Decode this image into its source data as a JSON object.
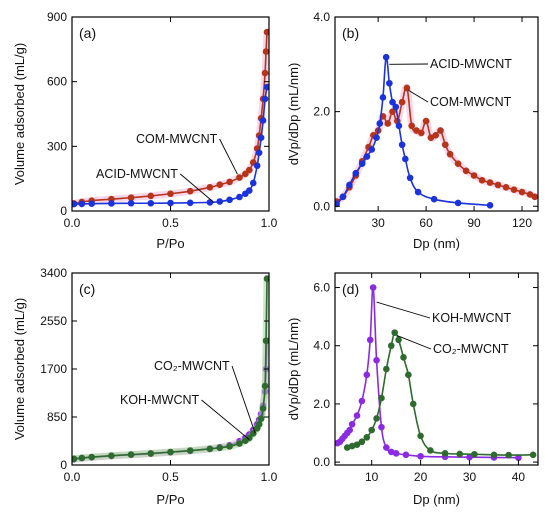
{
  "colors": {
    "com": "#b5341a",
    "acid": "#1a33dd",
    "koh": "#8a2be2",
    "co2": "#2e6b2e",
    "band": "#f3b6d8",
    "band_green": "#9fd59f"
  },
  "chart_data": [
    {
      "id": "a",
      "type": "scatter",
      "panel_label": "(a)",
      "xlabel": "P/Po",
      "ylabel": "Volume adsorbed (mL/g)",
      "xlim": [
        0,
        1.0
      ],
      "ylim": [
        0,
        900
      ],
      "xticks": [
        0.0,
        0.5,
        1.0
      ],
      "xtick_labels": [
        "0.0",
        "0.5",
        "1.0"
      ],
      "yticks": [
        0,
        300,
        600,
        900
      ],
      "ytick_labels": [
        "0",
        "300",
        "600",
        "900"
      ],
      "grid": false,
      "annotations": [
        {
          "text": "COM-MWCNT",
          "series": 0
        },
        {
          "text": "ACID-MWCNT",
          "series": 1
        }
      ],
      "series": [
        {
          "name": "COM-MWCNT",
          "color_key": "com",
          "band": true,
          "x": [
            0.01,
            0.05,
            0.1,
            0.2,
            0.3,
            0.4,
            0.5,
            0.6,
            0.7,
            0.75,
            0.8,
            0.85,
            0.88,
            0.9,
            0.92,
            0.94,
            0.95,
            0.96,
            0.97,
            0.98,
            0.985,
            0.99
          ],
          "y": [
            35,
            42,
            48,
            55,
            62,
            70,
            80,
            92,
            110,
            122,
            135,
            155,
            172,
            190,
            225,
            290,
            350,
            430,
            520,
            640,
            740,
            830
          ]
        },
        {
          "name": "ACID-MWCNT",
          "color_key": "acid",
          "band": false,
          "x": [
            0.01,
            0.05,
            0.1,
            0.2,
            0.3,
            0.4,
            0.5,
            0.6,
            0.7,
            0.75,
            0.8,
            0.85,
            0.88,
            0.9,
            0.92,
            0.94,
            0.95,
            0.96,
            0.97,
            0.98,
            0.99
          ],
          "y": [
            32,
            33,
            34,
            35,
            36,
            36,
            37,
            38,
            40,
            44,
            52,
            65,
            80,
            95,
            130,
            210,
            270,
            340,
            420,
            520,
            575
          ]
        }
      ]
    },
    {
      "id": "b",
      "type": "line",
      "panel_label": "(b)",
      "xlabel": "Dp (nm)",
      "ylabel": "dVp/dDp (mL/nm)",
      "xlim": [
        3,
        130
      ],
      "ylim": [
        -0.1,
        4.0
      ],
      "xticks": [
        30,
        60,
        90,
        120
      ],
      "xtick_labels": [
        "30",
        "60",
        "90",
        "120"
      ],
      "yticks": [
        0,
        2,
        4
      ],
      "ytick_labels": [
        "0.0",
        "2.0",
        "4.0"
      ],
      "grid": false,
      "annotations": [
        {
          "text": "ACID-MWCNT",
          "series": 1
        },
        {
          "text": "COM-MWCNT",
          "series": 0
        }
      ],
      "series": [
        {
          "name": "COM-MWCNT",
          "color_key": "com",
          "band": true,
          "x": [
            4,
            8,
            12,
            16,
            20,
            24,
            27,
            30,
            33,
            36,
            39,
            42,
            45,
            48,
            51,
            54,
            57,
            60,
            63,
            66,
            69,
            72,
            75,
            80,
            85,
            90,
            95,
            100,
            105,
            110,
            115,
            120,
            125,
            128
          ],
          "y": [
            0.1,
            0.2,
            0.4,
            0.65,
            0.95,
            1.25,
            1.5,
            1.6,
            1.9,
            1.75,
            2.0,
            1.8,
            2.2,
            2.5,
            1.7,
            1.6,
            1.55,
            1.8,
            1.45,
            1.5,
            1.6,
            1.3,
            1.1,
            0.9,
            0.75,
            0.65,
            0.55,
            0.5,
            0.45,
            0.4,
            0.35,
            0.3,
            0.25,
            0.2
          ]
        },
        {
          "name": "ACID-MWCNT",
          "color_key": "acid",
          "band": false,
          "x": [
            4,
            8,
            12,
            16,
            20,
            23,
            26,
            29,
            31,
            33,
            35,
            37,
            39,
            41,
            43,
            45,
            47,
            50,
            55,
            65,
            80,
            100
          ],
          "y": [
            0.05,
            0.2,
            0.45,
            0.7,
            0.9,
            1.05,
            1.2,
            1.45,
            1.75,
            2.3,
            3.15,
            2.6,
            2.2,
            2.1,
            1.7,
            1.3,
            1.0,
            0.6,
            0.3,
            0.15,
            0.07,
            0.02
          ]
        }
      ]
    },
    {
      "id": "c",
      "type": "scatter",
      "panel_label": "(c)",
      "xlabel": "P/Po",
      "ylabel": "Volume adsorbed (mL/g)",
      "xlim": [
        0,
        1.0
      ],
      "ylim": [
        0,
        3400
      ],
      "xticks": [
        0.0,
        0.5,
        1.0
      ],
      "xtick_labels": [
        "0.0",
        "0.5",
        "1.0"
      ],
      "yticks": [
        0,
        850,
        1700,
        2550,
        3400
      ],
      "ytick_labels": [
        "0",
        "850",
        "1700",
        "2550",
        "3400"
      ],
      "grid": false,
      "annotations": [
        {
          "text": "CO₂-MWCNT",
          "series": 1
        },
        {
          "text": "KOH-MWCNT",
          "series": 0
        }
      ],
      "series": [
        {
          "name": "KOH-MWCNT",
          "color_key": "koh",
          "band": true,
          "x": [
            0.01,
            0.05,
            0.1,
            0.2,
            0.3,
            0.4,
            0.5,
            0.6,
            0.7,
            0.75,
            0.8,
            0.85,
            0.88,
            0.9,
            0.92,
            0.94,
            0.95,
            0.96,
            0.97,
            0.98,
            0.985,
            0.99
          ],
          "y": [
            100,
            120,
            135,
            160,
            180,
            200,
            225,
            250,
            290,
            315,
            350,
            420,
            480,
            540,
            620,
            720,
            800,
            900,
            1050,
            1300,
            1700,
            2200
          ]
        },
        {
          "name": "CO₂-MWCNT",
          "color_key": "co2",
          "band": true,
          "x": [
            0.01,
            0.05,
            0.1,
            0.2,
            0.3,
            0.4,
            0.5,
            0.6,
            0.7,
            0.75,
            0.8,
            0.85,
            0.88,
            0.9,
            0.92,
            0.94,
            0.95,
            0.96,
            0.97,
            0.98,
            0.985,
            0.99
          ],
          "y": [
            110,
            125,
            140,
            165,
            185,
            205,
            230,
            255,
            285,
            305,
            330,
            380,
            430,
            480,
            560,
            650,
            720,
            820,
            1000,
            1400,
            2200,
            3300
          ]
        }
      ]
    },
    {
      "id": "d",
      "type": "line",
      "panel_label": "(d)",
      "xlabel": "Dp (nm)",
      "ylabel": "dVp/dDp (mL/nm)",
      "xlim": [
        2.5,
        44
      ],
      "ylim": [
        -0.1,
        6.5
      ],
      "xticks": [
        10,
        20,
        30,
        40
      ],
      "xtick_labels": [
        "10",
        "20",
        "30",
        "40"
      ],
      "yticks": [
        0,
        2,
        4,
        6
      ],
      "ytick_labels": [
        "0.0",
        "2.0",
        "4.0",
        "6.0"
      ],
      "grid": false,
      "annotations": [
        {
          "text": "KOH-MWCNT",
          "series": 0
        },
        {
          "text": "CO₂-MWCNT",
          "series": 1
        }
      ],
      "series": [
        {
          "name": "KOH-MWCNT",
          "color_key": "koh",
          "band": false,
          "x": [
            3,
            3.5,
            4,
            4.5,
            5,
            5.5,
            6,
            7,
            8,
            9,
            9.7,
            10.3,
            11,
            12,
            13,
            14,
            15,
            17,
            20,
            25,
            30,
            35,
            40
          ],
          "y": [
            0.65,
            0.7,
            0.8,
            0.9,
            1.0,
            1.1,
            1.3,
            1.6,
            2.1,
            3.0,
            4.2,
            6.0,
            3.5,
            1.2,
            0.5,
            0.35,
            0.3,
            0.25,
            0.2,
            0.18,
            0.17,
            0.16,
            0.15
          ]
        },
        {
          "name": "CO₂-MWCNT",
          "color_key": "co2",
          "band": false,
          "x": [
            5,
            6,
            7,
            8,
            9,
            10,
            11,
            12,
            13,
            14,
            14.7,
            15.5,
            16.5,
            17.5,
            18.5,
            20,
            22,
            25,
            28,
            31,
            35,
            38,
            43
          ],
          "y": [
            0.5,
            0.55,
            0.6,
            0.7,
            0.85,
            1.1,
            1.5,
            2.2,
            3.2,
            4.0,
            4.45,
            4.2,
            3.6,
            3.0,
            2.0,
            0.9,
            0.4,
            0.3,
            0.28,
            0.27,
            0.25,
            0.24,
            0.25
          ]
        }
      ]
    }
  ]
}
